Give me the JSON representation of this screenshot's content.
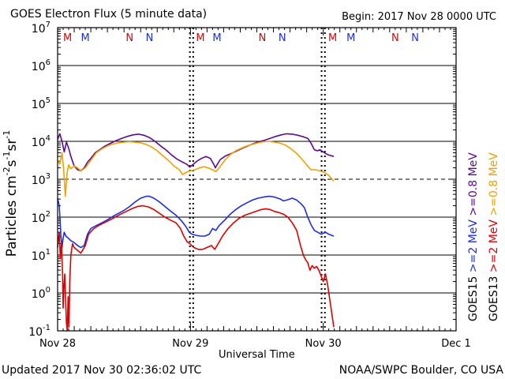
{
  "chart_data": {
    "type": "line",
    "title": "GOES Electron Flux (5 minute data)",
    "begin_label": "Begin: 2017 Nov 28 0000 UTC",
    "xlabel": "Universal Time",
    "ylabel_parts": [
      "Particles cm",
      "-2",
      "s",
      "-1",
      "sr",
      "-1"
    ],
    "yscale": "log",
    "ylim_exp": [
      -1,
      7
    ],
    "ytick_exps": [
      "7",
      "6",
      "5",
      "4",
      "3",
      "2",
      "1",
      "0",
      "-1"
    ],
    "x_unit": "hours since 2017 Nov 28 0000 UTC",
    "xlim": [
      0,
      72
    ],
    "x_ticks": [
      {
        "label": "Nov 28",
        "x": 0
      },
      {
        "label": "Nov 29",
        "x": 24
      },
      {
        "label": "Nov 30",
        "x": 48
      },
      {
        "label": "Dec 1",
        "x": 72
      }
    ],
    "threshold_exp": 3,
    "markers": [
      {
        "label": "M",
        "hour": 1.8,
        "color": "#e00000"
      },
      {
        "label": "M",
        "hour": 5.0,
        "color": "#1b2ee0"
      },
      {
        "label": "N",
        "hour": 13.0,
        "color": "#e00000"
      },
      {
        "label": "N",
        "hour": 16.6,
        "color": "#1b2ee0"
      },
      {
        "label": "M",
        "hour": 25.8,
        "color": "#e00000"
      },
      {
        "label": "M",
        "hour": 28.8,
        "color": "#1b2ee0"
      },
      {
        "label": "N",
        "hour": 37.0,
        "color": "#e00000"
      },
      {
        "label": "N",
        "hour": 40.6,
        "color": "#1b2ee0"
      },
      {
        "label": "M",
        "hour": 49.7,
        "color": "#e00000"
      },
      {
        "label": "M",
        "hour": 53.0,
        "color": "#1b2ee0"
      },
      {
        "label": "N",
        "hour": 61.0,
        "color": "#e00000"
      },
      {
        "label": "N",
        "hour": 64.6,
        "color": "#1b2ee0"
      }
    ],
    "day_markers": [
      {
        "hour": 23.9,
        "color": "#000000"
      },
      {
        "hour": 24.5,
        "color": "#000000"
      },
      {
        "hour": 47.7,
        "color": "#000000"
      },
      {
        "hour": 48.3,
        "color": "#000000"
      }
    ],
    "legend_goes15": "GOES15",
    "legend_goes13": "GOES13",
    "series": [
      {
        "name": ">=0.8 MeV",
        "sat": "GOES15",
        "color": "#5b0a91",
        "points": [
          [
            0.0,
            4.05
          ],
          [
            0.4,
            4.2
          ],
          [
            0.8,
            4.0
          ],
          [
            1.2,
            3.72
          ],
          [
            1.6,
            3.98
          ],
          [
            2.0,
            3.82
          ],
          [
            2.4,
            3.6
          ],
          [
            3.0,
            3.35
          ],
          [
            3.6,
            3.25
          ],
          [
            4.2,
            3.22
          ],
          [
            4.8,
            3.3
          ],
          [
            5.4,
            3.45
          ],
          [
            6.0,
            3.55
          ],
          [
            6.8,
            3.7
          ],
          [
            7.6,
            3.78
          ],
          [
            8.6,
            3.88
          ],
          [
            9.6,
            3.95
          ],
          [
            10.6,
            4.02
          ],
          [
            11.6,
            4.08
          ],
          [
            12.6,
            4.13
          ],
          [
            13.6,
            4.17
          ],
          [
            14.6,
            4.19
          ],
          [
            15.6,
            4.16
          ],
          [
            16.6,
            4.1
          ],
          [
            17.6,
            4.0
          ],
          [
            18.6,
            3.88
          ],
          [
            19.6,
            3.77
          ],
          [
            20.6,
            3.64
          ],
          [
            21.6,
            3.53
          ],
          [
            22.6,
            3.45
          ],
          [
            23.3,
            3.4
          ],
          [
            23.9,
            3.32
          ],
          [
            24.4,
            3.38
          ],
          [
            25.2,
            3.48
          ],
          [
            26.0,
            3.55
          ],
          [
            26.8,
            3.6
          ],
          [
            27.6,
            3.55
          ],
          [
            28.2,
            3.4
          ],
          [
            28.5,
            3.3
          ],
          [
            28.8,
            3.38
          ],
          [
            29.4,
            3.52
          ],
          [
            30.4,
            3.62
          ],
          [
            31.4,
            3.68
          ],
          [
            32.4,
            3.75
          ],
          [
            33.4,
            3.82
          ],
          [
            34.4,
            3.88
          ],
          [
            35.4,
            3.94
          ],
          [
            36.4,
            3.99
          ],
          [
            37.4,
            4.03
          ],
          [
            38.4,
            4.08
          ],
          [
            39.4,
            4.13
          ],
          [
            40.4,
            4.17
          ],
          [
            41.4,
            4.2
          ],
          [
            42.4,
            4.19
          ],
          [
            43.4,
            4.16
          ],
          [
            44.4,
            4.12
          ],
          [
            45.2,
            4.08
          ],
          [
            45.8,
            3.95
          ],
          [
            46.4,
            3.78
          ],
          [
            46.9,
            3.75
          ],
          [
            47.4,
            3.78
          ],
          [
            48.2,
            3.7
          ],
          [
            48.8,
            3.65
          ],
          [
            49.4,
            3.62
          ],
          [
            49.9,
            3.6
          ]
        ]
      },
      {
        "name": ">=0.8 MeV",
        "sat": "GOES13",
        "color": "#f0a000",
        "points": [
          [
            0.0,
            3.5
          ],
          [
            0.4,
            3.4
          ],
          [
            0.8,
            3.7
          ],
          [
            1.1,
            3.25
          ],
          [
            1.4,
            2.55
          ],
          [
            1.7,
            3.15
          ],
          [
            2.0,
            3.38
          ],
          [
            2.4,
            3.28
          ],
          [
            3.0,
            3.35
          ],
          [
            3.6,
            3.3
          ],
          [
            4.2,
            3.22
          ],
          [
            5.0,
            3.3
          ],
          [
            6.0,
            3.5
          ],
          [
            7.0,
            3.7
          ],
          [
            8.0,
            3.8
          ],
          [
            9.0,
            3.88
          ],
          [
            10.0,
            3.93
          ],
          [
            11.0,
            3.96
          ],
          [
            12.0,
            3.98
          ],
          [
            13.0,
            3.99
          ],
          [
            14.0,
            3.98
          ],
          [
            15.0,
            3.96
          ],
          [
            16.0,
            3.92
          ],
          [
            17.0,
            3.85
          ],
          [
            18.0,
            3.75
          ],
          [
            19.0,
            3.62
          ],
          [
            20.0,
            3.5
          ],
          [
            21.0,
            3.35
          ],
          [
            22.0,
            3.25
          ],
          [
            22.6,
            3.12
          ],
          [
            23.2,
            3.18
          ],
          [
            24.0,
            3.22
          ],
          [
            24.8,
            3.25
          ],
          [
            25.6,
            3.3
          ],
          [
            26.4,
            3.33
          ],
          [
            27.2,
            3.3
          ],
          [
            28.0,
            3.25
          ],
          [
            28.6,
            3.2
          ],
          [
            29.2,
            3.3
          ],
          [
            30.2,
            3.5
          ],
          [
            31.2,
            3.65
          ],
          [
            32.2,
            3.75
          ],
          [
            33.2,
            3.82
          ],
          [
            34.2,
            3.88
          ],
          [
            35.2,
            3.92
          ],
          [
            36.2,
            3.96
          ],
          [
            37.2,
            3.99
          ],
          [
            38.2,
            4.0
          ],
          [
            39.2,
            3.98
          ],
          [
            40.2,
            3.95
          ],
          [
            41.2,
            3.9
          ],
          [
            42.2,
            3.8
          ],
          [
            43.2,
            3.68
          ],
          [
            44.2,
            3.52
          ],
          [
            45.0,
            3.38
          ],
          [
            45.8,
            3.25
          ],
          [
            46.6,
            3.25
          ],
          [
            47.4,
            3.22
          ],
          [
            48.2,
            3.18
          ],
          [
            49.0,
            3.1
          ],
          [
            49.9,
            2.95
          ]
        ]
      },
      {
        "name": ">=2 MeV",
        "sat": "GOES15",
        "color": "#1b2ee0",
        "points": [
          [
            0.0,
            2.5
          ],
          [
            0.3,
            2.3
          ],
          [
            0.6,
            1.5
          ],
          [
            0.8,
            1.2
          ],
          [
            1.0,
            1.45
          ],
          [
            1.2,
            1.6
          ],
          [
            1.5,
            1.5
          ],
          [
            1.9,
            1.45
          ],
          [
            2.4,
            1.38
          ],
          [
            3.0,
            1.33
          ],
          [
            3.6,
            1.25
          ],
          [
            4.2,
            1.2
          ],
          [
            4.8,
            1.25
          ],
          [
            5.4,
            1.55
          ],
          [
            6.0,
            1.7
          ],
          [
            7.0,
            1.78
          ],
          [
            8.0,
            1.85
          ],
          [
            9.0,
            1.93
          ],
          [
            10.0,
            2.02
          ],
          [
            11.0,
            2.1
          ],
          [
            12.0,
            2.18
          ],
          [
            13.0,
            2.28
          ],
          [
            14.0,
            2.4
          ],
          [
            15.0,
            2.5
          ],
          [
            16.0,
            2.55
          ],
          [
            16.6,
            2.55
          ],
          [
            17.4,
            2.5
          ],
          [
            18.4,
            2.4
          ],
          [
            19.4,
            2.28
          ],
          [
            20.4,
            2.16
          ],
          [
            21.4,
            2.05
          ],
          [
            22.4,
            1.9
          ],
          [
            23.2,
            1.75
          ],
          [
            23.8,
            1.6
          ],
          [
            24.3,
            1.55
          ],
          [
            25.0,
            1.52
          ],
          [
            25.8,
            1.5
          ],
          [
            26.6,
            1.5
          ],
          [
            27.4,
            1.55
          ],
          [
            28.0,
            1.7
          ],
          [
            28.6,
            1.65
          ],
          [
            29.2,
            1.78
          ],
          [
            30.2,
            1.92
          ],
          [
            31.2,
            2.08
          ],
          [
            32.2,
            2.2
          ],
          [
            33.2,
            2.3
          ],
          [
            34.2,
            2.38
          ],
          [
            35.2,
            2.45
          ],
          [
            36.2,
            2.5
          ],
          [
            37.2,
            2.53
          ],
          [
            38.2,
            2.55
          ],
          [
            39.2,
            2.53
          ],
          [
            40.2,
            2.48
          ],
          [
            40.8,
            2.43
          ],
          [
            41.4,
            2.45
          ],
          [
            42.4,
            2.5
          ],
          [
            43.2,
            2.45
          ],
          [
            44.0,
            2.35
          ],
          [
            44.6,
            2.25
          ],
          [
            45.2,
            2.0
          ],
          [
            45.8,
            1.8
          ],
          [
            46.4,
            1.65
          ],
          [
            47.0,
            1.6
          ],
          [
            47.6,
            1.55
          ],
          [
            48.4,
            1.6
          ],
          [
            49.0,
            1.55
          ],
          [
            49.5,
            1.52
          ],
          [
            49.9,
            1.5
          ]
        ]
      },
      {
        "name": ">=2 MeV",
        "sat": "GOES13",
        "color": "#e00000",
        "points": [
          [
            0.0,
            1.2
          ],
          [
            0.3,
            1.6
          ],
          [
            0.5,
            0.9
          ],
          [
            0.7,
            1.3
          ],
          [
            0.9,
            0.5
          ],
          [
            1.0,
            -0.4
          ],
          [
            1.15,
            0.2
          ],
          [
            1.3,
            0.5
          ],
          [
            1.45,
            -0.2
          ],
          [
            1.6,
            -0.8
          ],
          [
            1.75,
            -1.0
          ],
          [
            1.9,
            -0.1
          ],
          [
            2.05,
            -0.9
          ],
          [
            2.2,
            0.3
          ],
          [
            2.4,
            1.0
          ],
          [
            2.7,
            1.3
          ],
          [
            3.0,
            1.2
          ],
          [
            3.4,
            1.15
          ],
          [
            3.8,
            1.1
          ],
          [
            4.2,
            1.05
          ],
          [
            4.6,
            1.15
          ],
          [
            5.0,
            1.25
          ],
          [
            5.6,
            1.55
          ],
          [
            6.4,
            1.68
          ],
          [
            7.4,
            1.78
          ],
          [
            8.4,
            1.85
          ],
          [
            9.4,
            1.92
          ],
          [
            10.4,
            2.0
          ],
          [
            11.4,
            2.08
          ],
          [
            12.4,
            2.15
          ],
          [
            13.4,
            2.22
          ],
          [
            14.4,
            2.28
          ],
          [
            15.4,
            2.3
          ],
          [
            16.4,
            2.27
          ],
          [
            17.4,
            2.2
          ],
          [
            18.4,
            2.1
          ],
          [
            19.4,
            2.0
          ],
          [
            20.4,
            1.92
          ],
          [
            21.4,
            1.85
          ],
          [
            22.2,
            1.7
          ],
          [
            22.8,
            1.5
          ],
          [
            23.4,
            1.35
          ],
          [
            23.9,
            1.3
          ],
          [
            24.6,
            1.2
          ],
          [
            25.4,
            1.15
          ],
          [
            26.2,
            1.15
          ],
          [
            27.0,
            1.2
          ],
          [
            27.8,
            1.25
          ],
          [
            28.4,
            1.15
          ],
          [
            29.0,
            1.3
          ],
          [
            29.8,
            1.5
          ],
          [
            30.8,
            1.7
          ],
          [
            31.8,
            1.85
          ],
          [
            32.8,
            1.97
          ],
          [
            33.8,
            2.05
          ],
          [
            34.8,
            2.1
          ],
          [
            35.8,
            2.15
          ],
          [
            36.8,
            2.2
          ],
          [
            37.6,
            2.22
          ],
          [
            38.4,
            2.2
          ],
          [
            39.2,
            2.15
          ],
          [
            40.0,
            2.12
          ],
          [
            40.8,
            2.08
          ],
          [
            41.6,
            2.0
          ],
          [
            42.4,
            1.85
          ],
          [
            43.2,
            1.65
          ],
          [
            43.8,
            1.3
          ],
          [
            44.4,
            1.0
          ],
          [
            44.8,
            0.88
          ],
          [
            45.2,
            0.8
          ],
          [
            45.6,
            0.6
          ],
          [
            46.0,
            0.72
          ],
          [
            46.4,
            0.65
          ],
          [
            46.8,
            0.7
          ],
          [
            47.2,
            0.6
          ],
          [
            47.6,
            0.45
          ],
          [
            48.0,
            0.3
          ],
          [
            48.4,
            0.5
          ],
          [
            48.8,
            0.2
          ],
          [
            49.2,
            -0.2
          ],
          [
            49.6,
            -0.6
          ],
          [
            49.9,
            -0.9
          ]
        ]
      }
    ]
  },
  "footer": {
    "updated": "Updated 2017 Nov 30 02:36:02 UTC",
    "credit": "NOAA/SWPC Boulder, CO USA"
  }
}
